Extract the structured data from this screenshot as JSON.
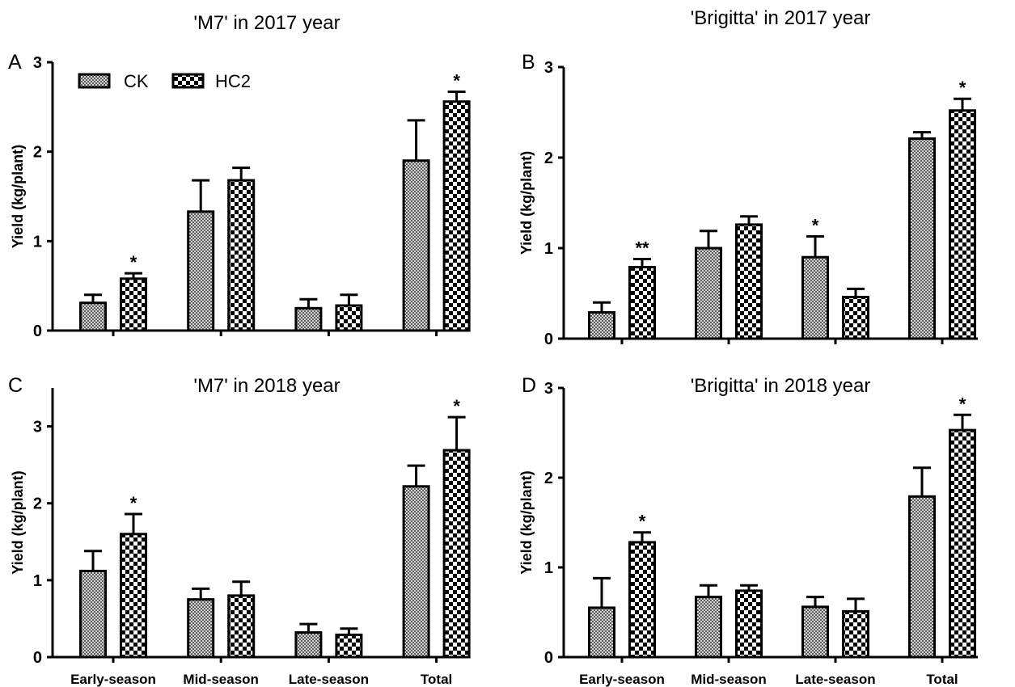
{
  "colors": {
    "ck": "#8f8f8f",
    "hc2": "#000000",
    "axis": "#000000",
    "background": "#ffffff"
  },
  "legend": {
    "items": [
      {
        "key": "ck",
        "label": "CK"
      },
      {
        "key": "hc2",
        "label": "HC2"
      }
    ]
  },
  "chart_data": [
    {
      "id": "A",
      "panel_label": "A",
      "type": "bar",
      "title": "'M7' in 2017 year",
      "xlabel": "",
      "ylabel": "Yield (kg/plant)",
      "ylim": [
        0,
        3
      ],
      "yticks": [
        0,
        1,
        2,
        3
      ],
      "categories": [
        "Early-season",
        "Mid-season",
        "Late-season",
        "Total"
      ],
      "show_category_labels": false,
      "legend": true,
      "series": [
        {
          "name": "CK",
          "key": "ck",
          "values": [
            0.31,
            1.33,
            0.25,
            1.9
          ],
          "errors": [
            0.09,
            0.35,
            0.1,
            0.45
          ],
          "annotations": [
            "",
            "",
            "",
            ""
          ]
        },
        {
          "name": "HC2",
          "key": "hc2",
          "values": [
            0.58,
            1.68,
            0.28,
            2.56
          ],
          "errors": [
            0.06,
            0.14,
            0.12,
            0.11
          ],
          "annotations": [
            "*",
            "",
            "",
            "*"
          ]
        }
      ]
    },
    {
      "id": "B",
      "panel_label": "B",
      "type": "bar",
      "title": "'Brigitta' in 2017 year",
      "xlabel": "",
      "ylabel": "Yield (kg/plant)",
      "ylim": [
        0,
        3
      ],
      "yticks": [
        0,
        1,
        2,
        3
      ],
      "categories": [
        "Early-season",
        "Mid-season",
        "Late-season",
        "Total"
      ],
      "show_category_labels": false,
      "legend": false,
      "series": [
        {
          "name": "CK",
          "key": "ck",
          "values": [
            0.29,
            1.0,
            0.9,
            2.21
          ],
          "errors": [
            0.11,
            0.19,
            0.23,
            0.07
          ],
          "annotations": [
            "",
            "",
            "*",
            ""
          ]
        },
        {
          "name": "HC2",
          "key": "hc2",
          "values": [
            0.79,
            1.26,
            0.46,
            2.52
          ],
          "errors": [
            0.09,
            0.09,
            0.09,
            0.13
          ],
          "annotations": [
            "**",
            "",
            "",
            "*"
          ]
        }
      ]
    },
    {
      "id": "C",
      "panel_label": "C",
      "type": "bar",
      "title": "'M7' in 2018 year",
      "xlabel": "",
      "ylabel": "Yield (kg/plant)",
      "ylim": [
        0,
        3.5
      ],
      "yticks": [
        0,
        1,
        2,
        3
      ],
      "categories": [
        "Early-season",
        "Mid-season",
        "Late-season",
        "Total"
      ],
      "show_category_labels": true,
      "legend": false,
      "series": [
        {
          "name": "CK",
          "key": "ck",
          "values": [
            1.12,
            0.75,
            0.32,
            2.22
          ],
          "errors": [
            0.26,
            0.14,
            0.11,
            0.27
          ],
          "annotations": [
            "",
            "",
            "",
            ""
          ]
        },
        {
          "name": "HC2",
          "key": "hc2",
          "values": [
            1.6,
            0.8,
            0.29,
            2.69
          ],
          "errors": [
            0.26,
            0.18,
            0.08,
            0.43
          ],
          "annotations": [
            "*",
            "",
            "",
            "*"
          ]
        }
      ]
    },
    {
      "id": "D",
      "panel_label": "D",
      "type": "bar",
      "title": "'Brigitta' in 2018 year",
      "xlabel": "",
      "ylabel": "Yield (kg/plant)",
      "ylim": [
        0,
        3
      ],
      "yticks": [
        0,
        1,
        2,
        3
      ],
      "categories": [
        "Early-season",
        "Mid-season",
        "Late-season",
        "Total"
      ],
      "show_category_labels": true,
      "legend": false,
      "series": [
        {
          "name": "CK",
          "key": "ck",
          "values": [
            0.55,
            0.67,
            0.56,
            1.79
          ],
          "errors": [
            0.33,
            0.13,
            0.11,
            0.32
          ],
          "annotations": [
            "",
            "",
            "",
            ""
          ]
        },
        {
          "name": "HC2",
          "key": "hc2",
          "values": [
            1.28,
            0.74,
            0.51,
            2.53
          ],
          "errors": [
            0.11,
            0.06,
            0.14,
            0.17
          ],
          "annotations": [
            "*",
            "",
            "",
            "*"
          ]
        }
      ]
    }
  ]
}
